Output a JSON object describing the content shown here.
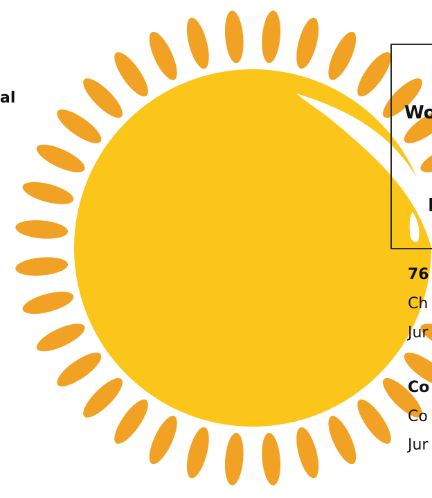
{
  "left_fragment": {
    "text": "al"
  },
  "right_box": {
    "line1": "Wo",
    "line2": "I"
  },
  "list": [
    {
      "title": "76",
      "line1": "Ch",
      "line2": "Jur"
    },
    {
      "title": "Co",
      "line1": "Co",
      "line2": "Jur"
    }
  ],
  "colors": {
    "sun_fill": "#FBC51A",
    "ray_fill": "#F1A124",
    "highlight": "#ffffff",
    "text": "#111111",
    "frame": "#2a2a2a"
  },
  "icons": {
    "sun": "sun-illustration",
    "rays": "sun-ray",
    "highlight": "glare-highlight"
  }
}
